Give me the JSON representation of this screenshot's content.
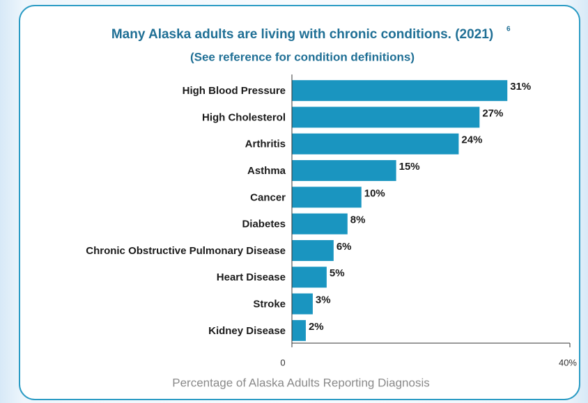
{
  "chart_data": {
    "type": "bar",
    "orientation": "horizontal",
    "title": "Many Alaska adults are living with chronic conditions. (2021)",
    "title_footnote": "6",
    "subtitle": "(See reference for condition definitions)",
    "x_label": "Percentage of Alaska Adults Reporting Diagnosis",
    "categories": [
      "High Blood Pressure",
      "High Cholesterol",
      "Arthritis",
      "Asthma",
      "Cancer",
      "Diabetes",
      "Chronic Obstructive Pulmonary Disease",
      "Heart Disease",
      "Stroke",
      "Kidney Disease"
    ],
    "values": [
      31,
      27,
      24,
      15,
      10,
      8,
      6,
      5,
      3,
      2
    ],
    "value_labels": [
      "31%",
      "27%",
      "24%",
      "15%",
      "10%",
      "8%",
      "6%",
      "5%",
      "3%",
      "2%"
    ],
    "color": "#1a95c0",
    "xlim": [
      0,
      40
    ],
    "xticks": [
      0,
      {
        "value": 40,
        "label": "40%"
      }
    ],
    "grid": false
  }
}
